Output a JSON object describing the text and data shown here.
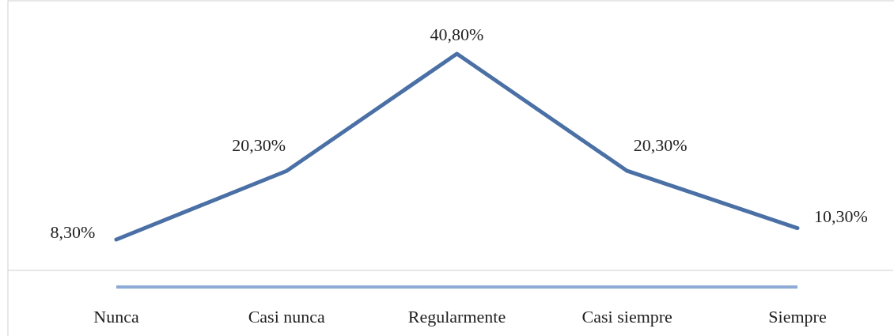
{
  "chart_data": {
    "type": "line",
    "categories": [
      "Nunca",
      "Casi nunca",
      "Regularmente",
      "Casi siempre",
      "Siempre"
    ],
    "series": [
      {
        "color": "#4a70a6",
        "values": [
          8.3,
          20.3,
          40.8,
          20.3,
          10.3
        ],
        "value_labels": [
          "8,30%",
          "20,30%",
          "40,80%",
          "20,30%",
          "10,30%"
        ]
      }
    ],
    "marker": "none",
    "line_style": "solid"
  }
}
